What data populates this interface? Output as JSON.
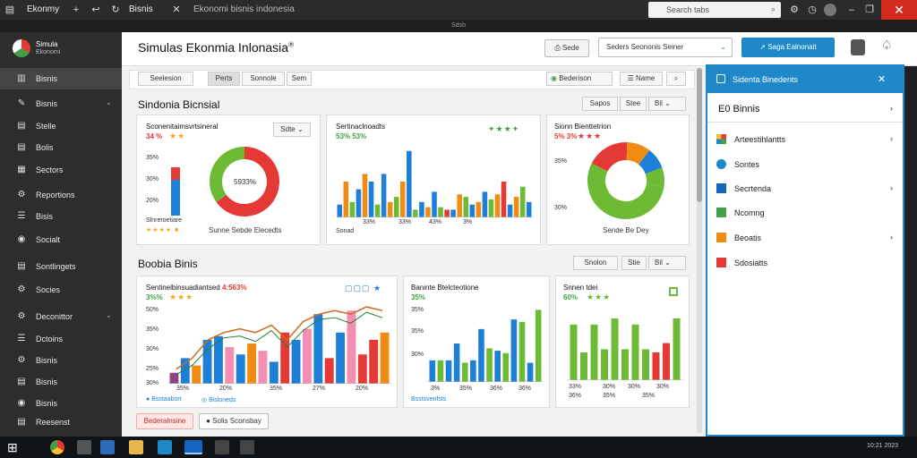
{
  "titlebar": {
    "app_name": "Ekonmy",
    "tab_label": "Bisnis",
    "address": "Ekonomi bisnis indonesia",
    "search_placeholder": "Search tabs",
    "close_glyph": "✕",
    "strip_text": "Sdsb"
  },
  "sidebar": {
    "logo_text": "Simula",
    "logo_sub": "Ekonomi",
    "items": [
      {
        "label": "Bisnis",
        "icon": "chart-icon"
      },
      {
        "label": "Bisnis",
        "icon": "wrench-icon"
      },
      {
        "label": "Stelle",
        "icon": "document-icon"
      },
      {
        "label": "Bolis",
        "icon": "document-icon"
      },
      {
        "label": "Sectors",
        "icon": "folder-icon"
      },
      {
        "label": "Reportions",
        "icon": "gear-icon"
      },
      {
        "label": "Bisis",
        "icon": "list-icon"
      },
      {
        "label": "Socialt",
        "icon": "info-icon"
      },
      {
        "label": "Sontlingets",
        "icon": "document-icon"
      },
      {
        "label": "Socies",
        "icon": "gear-icon"
      },
      {
        "label": "Deconittor",
        "icon": "gear-icon"
      },
      {
        "label": "Dctoins",
        "icon": "list-icon"
      },
      {
        "label": "Bisnis",
        "icon": "gear-icon"
      },
      {
        "label": "Bisnis",
        "icon": "document-icon"
      },
      {
        "label": "Bisnis",
        "icon": "info-icon"
      },
      {
        "label": "Reesenst",
        "icon": "document-icon"
      }
    ]
  },
  "header": {
    "title": "Simulas Ekonmia Inlonasia",
    "trademark": "®",
    "btn_share": "Sede",
    "dropdown": "Seders Seononis Seiner",
    "btn_primary": "Saga Ealnonait"
  },
  "toolbar": {
    "pills": [
      "Seelesion",
      "Perts",
      "Sonnole",
      "Sem"
    ],
    "status_label": "Bederison",
    "name_label": "Name"
  },
  "section1": {
    "title": "Sindonia Bicnsial",
    "pills": [
      "Sapos",
      "Stee",
      "Bil"
    ],
    "card1": {
      "title": "Sconenitaimsvrtsineral",
      "subtitle": "34 %",
      "y_labels": [
        "35%",
        "30%",
        "20%"
      ],
      "legend": "Slnreroetiare",
      "center": "5933%",
      "caption": "Sunne Sebde Elecedts",
      "menu": "Sdte"
    },
    "card2": {
      "title": "Sertinaclnoadts",
      "subtitle": "53% 53%",
      "x_labels": [
        "33%",
        "33%",
        "43%",
        "3%"
      ],
      "caption": "Sonad"
    },
    "card3": {
      "title": "Sionn Bienttetrion",
      "subtitle": "5% 3%",
      "y_labels": [
        "35%",
        "30%"
      ],
      "caption": "Sende Be Dey"
    }
  },
  "section2": {
    "title": "Boobia Binis",
    "pills": [
      "Snolon",
      "Stie",
      "Bil"
    ],
    "card4": {
      "title": "Sentinelbinsuadiantsed",
      "highlight": "4:563%",
      "subtitle": "3%%",
      "y_labels": [
        "50%",
        "35%",
        "30%",
        "25%",
        "30%"
      ],
      "x_labels": [
        "35%",
        "20%",
        "35%",
        "27%",
        "20%"
      ],
      "legend": [
        "Bsstaabort",
        "Bisloneds"
      ]
    },
    "card5": {
      "title": "Baninte Btelcteotione",
      "subtitle": "35%",
      "y_labels": [
        "35%",
        "35%",
        "30%"
      ],
      "x_labels": [
        "3%",
        "35%",
        "36%",
        "36%"
      ],
      "legend": "Bsstsvenfsts"
    },
    "card6": {
      "title": "Snnen tdei",
      "subtitle": "60%",
      "x_labels": [
        "33%",
        "30%",
        "30%",
        "30%"
      ],
      "x_labels2": [
        "36%",
        "35%",
        "35%"
      ]
    },
    "buttons": [
      "Bederalnsine",
      "Solis Sconsbay"
    ]
  },
  "panel": {
    "title": "Sidenta Binedents",
    "close_glyph": "✕",
    "heading": "E0 Binnis",
    "items": [
      {
        "label": "Arteestihlantts",
        "icon": "windows-icon",
        "chev": true
      },
      {
        "label": "Sontes",
        "icon": "circle-icon",
        "chev": false
      },
      {
        "label": "Secrtenda",
        "icon": "square-icon",
        "chev": true
      },
      {
        "label": "Ncomng",
        "icon": "check-icon",
        "chev": false
      },
      {
        "label": "Beoatis",
        "icon": "folder-icon",
        "chev": true
      },
      {
        "label": "Sdosiatts",
        "icon": "flower-icon",
        "chev": false
      }
    ]
  },
  "taskbar": {
    "clock": "10:21 2023"
  },
  "colors": {
    "blue": "#1e7fd8",
    "orange": "#f08c13",
    "green": "#6dbb35",
    "red": "#e53935",
    "pink": "#f48fb1",
    "navy": "#1565c0",
    "brand": "#1e88c9"
  },
  "chart_data": [
    {
      "type": "pie",
      "title": "Sconenitaimsvrtsineral",
      "slices": [
        {
          "name": "A",
          "value": 65,
          "color": "#e53935"
        },
        {
          "name": "B",
          "value": 35,
          "color": "#6dbb35"
        }
      ],
      "center_label": "5933%"
    },
    {
      "type": "bar",
      "title": "Sertinaclnoadts",
      "values": [
        10,
        28,
        12,
        22,
        34,
        28,
        10,
        34,
        12,
        16,
        28,
        52,
        6,
        12,
        8,
        20,
        8,
        6,
        6,
        18,
        16,
        10,
        12,
        20,
        14,
        18,
        28,
        10,
        16,
        24,
        12
      ],
      "colors": [
        "#1e7fd8",
        "#f08c13",
        "#6dbb35",
        "#1e7fd8",
        "#f08c13",
        "#1e7fd8",
        "#6dbb35",
        "#1e7fd8",
        "#f08c13",
        "#6dbb35",
        "#f08c13",
        "#1e7fd8",
        "#6dbb35",
        "#1e7fd8",
        "#f08c13",
        "#1e7fd8",
        "#6dbb35",
        "#e53935",
        "#1e7fd8",
        "#f08c13",
        "#6dbb35",
        "#1e7fd8",
        "#f08c13",
        "#1e7fd8",
        "#6dbb35",
        "#f08c13",
        "#e53935",
        "#1e7fd8",
        "#f08c13",
        "#6dbb35",
        "#1e7fd8"
      ]
    },
    {
      "type": "pie",
      "title": "Sionn Bienttetrion",
      "slices": [
        {
          "name": "A",
          "value": 55,
          "color": "#6dbb35"
        },
        {
          "name": "B",
          "value": 18,
          "color": "#e53935"
        },
        {
          "name": "C",
          "value": 10,
          "color": "#f08c13"
        },
        {
          "name": "D",
          "value": 9,
          "color": "#1e7fd8"
        },
        {
          "name": "E",
          "value": 8,
          "color": "#6dbb35"
        }
      ]
    },
    {
      "type": "bar",
      "title": "Sentinelbinsuadiantsed",
      "values": [
        3,
        7,
        5,
        12,
        13,
        10,
        8,
        11,
        9,
        6,
        14,
        12,
        15,
        19,
        7,
        14,
        20,
        8,
        12,
        14
      ],
      "colors": [
        "#8e4585",
        "#1e7fd8",
        "#f08c13",
        "#1e7fd8",
        "#1e7fd8",
        "#f48fb1",
        "#1e7fd8",
        "#f08c13",
        "#f48fb1",
        "#1e7fd8",
        "#e53935",
        "#1e7fd8",
        "#f48fb1",
        "#1e7fd8",
        "#e53935",
        "#1e7fd8",
        "#f48fb1",
        "#e53935",
        "#e53935",
        "#f08c13"
      ],
      "line": [
        4,
        7,
        12,
        14,
        15,
        14,
        16,
        12,
        17,
        19,
        20,
        19,
        21,
        20
      ]
    },
    {
      "type": "bar",
      "title": "Baninte Btelcteotione",
      "values": [
        9,
        9,
        9,
        16,
        8,
        9,
        22,
        14,
        13,
        12,
        26,
        25,
        8,
        30
      ],
      "colors": [
        "#1e7fd8",
        "#6dbb35",
        "#1e7fd8",
        "#1e7fd8",
        "#6dbb35",
        "#1e7fd8",
        "#1e7fd8",
        "#6dbb35",
        "#1e7fd8",
        "#6dbb35",
        "#1e7fd8",
        "#6dbb35",
        "#1e7fd8",
        "#6dbb35"
      ]
    },
    {
      "type": "bar",
      "title": "Snnen tdei",
      "values": [
        18,
        9,
        18,
        10,
        20,
        10,
        18,
        10,
        9,
        12,
        20
      ],
      "colors": [
        "#6dbb35",
        "#6dbb35",
        "#6dbb35",
        "#6dbb35",
        "#6dbb35",
        "#6dbb35",
        "#6dbb35",
        "#6dbb35",
        "#e53935",
        "#e53935",
        "#6dbb35"
      ]
    }
  ]
}
